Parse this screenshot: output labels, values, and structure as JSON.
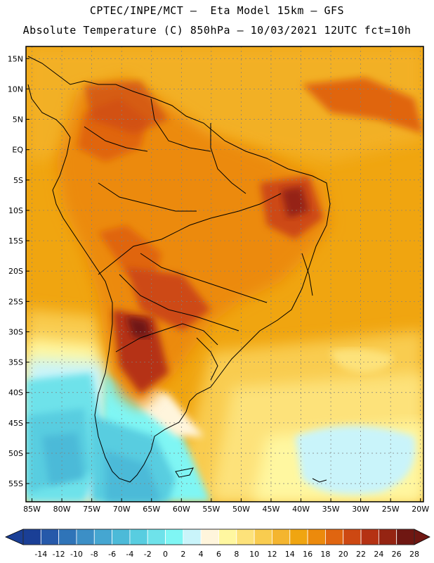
{
  "header": {
    "line1": "CPTEC/INPE/MCT –  Eta Model 15km – GFS",
    "line2": "Absolute Temperature (C) 850hPa – 10/03/2021 12UTC fct=10h"
  },
  "map": {
    "lat_labels": [
      "15N",
      "10N",
      "5N",
      "EQ",
      "5S",
      "10S",
      "15S",
      "20S",
      "25S",
      "30S",
      "35S",
      "40S",
      "45S",
      "50S",
      "55S"
    ],
    "lon_labels": [
      "85W",
      "80W",
      "75W",
      "70W",
      "65W",
      "60W",
      "55W",
      "50W",
      "45W",
      "40W",
      "35W",
      "30W",
      "25W",
      "20W"
    ],
    "lat_values": [
      15,
      10,
      5,
      0,
      -5,
      -10,
      -15,
      -20,
      -25,
      -30,
      -35,
      -40,
      -45,
      -50,
      -55
    ],
    "lon_values": [
      -85,
      -80,
      -75,
      -70,
      -65,
      -60,
      -55,
      -50,
      -45,
      -40,
      -35,
      -30,
      -25,
      -20
    ],
    "extent": {
      "west": -86,
      "east": -19.5,
      "south": -58,
      "north": 17
    }
  },
  "legend": {
    "labels": [
      "-14",
      "-12",
      "-10",
      "-8",
      "-6",
      "-4",
      "-2",
      "0",
      "2",
      "4",
      "6",
      "8",
      "10",
      "12",
      "14",
      "16",
      "18",
      "20",
      "22",
      "24",
      "26",
      "28"
    ],
    "colors": [
      "#1a3f96",
      "#2659aa",
      "#2f74b8",
      "#3c8fc6",
      "#45a6d1",
      "#4cbad8",
      "#58cde0",
      "#6ee2ea",
      "#7ff6f4",
      "#c9f4fa",
      "#fff5dc",
      "#fff7a0",
      "#fde27a",
      "#f9cc4f",
      "#f4b52f",
      "#f0a510",
      "#ec8a0c",
      "#e06510",
      "#cd4812",
      "#b53213",
      "#952412",
      "#6f1712"
    ],
    "value_min": -14,
    "value_step": 2
  }
}
